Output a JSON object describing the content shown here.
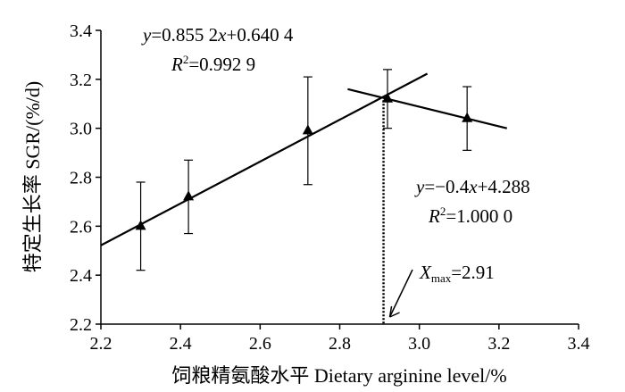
{
  "chart_data": {
    "type": "scatter",
    "xlabel": "饲粮精氨酸水平  Dietary arginine level/%",
    "ylabel": "特定生长率  SGR/(%/d)",
    "xlim": [
      2.2,
      3.4
    ],
    "ylim": [
      2.2,
      3.4
    ],
    "x_ticks": [
      "2.2",
      "2.4",
      "2.6",
      "2.8",
      "3.0",
      "3.2",
      "3.4"
    ],
    "y_ticks": [
      "2.2",
      "2.4",
      "2.6",
      "2.8",
      "3.0",
      "3.2",
      "3.4"
    ],
    "grid": false,
    "marker": "triangle",
    "points": [
      {
        "x": 2.3,
        "y": 2.6,
        "err": 0.18
      },
      {
        "x": 2.42,
        "y": 2.72,
        "err": 0.15
      },
      {
        "x": 2.72,
        "y": 2.99,
        "err": 0.22
      },
      {
        "x": 2.92,
        "y": 3.12,
        "err": 0.12
      },
      {
        "x": 3.12,
        "y": 3.04,
        "err": 0.13
      }
    ],
    "fit_lines": [
      {
        "slope": 0.8552,
        "intercept": 0.6404,
        "x_range": [
          2.2,
          3.02
        ],
        "equation_y": "y",
        "equation_rest": "=0.855 2",
        "equation_x": "x",
        "equation_tail": "+0.640 4",
        "r2_label": "R",
        "r2_sup": "2",
        "r2_value": "=0.992 9"
      },
      {
        "slope": -0.4,
        "intercept": 4.288,
        "x_range": [
          2.82,
          3.22
        ],
        "equation_y": "y",
        "equation_rest": "=−0.4",
        "equation_x": "x",
        "equation_tail": "+4.288",
        "r2_label": "R",
        "r2_sup": "2",
        "r2_value": "=1.000 0"
      }
    ],
    "optimum": {
      "x": 2.91,
      "label_main": "X",
      "label_sub": "max",
      "label_value": "=2.91"
    }
  }
}
